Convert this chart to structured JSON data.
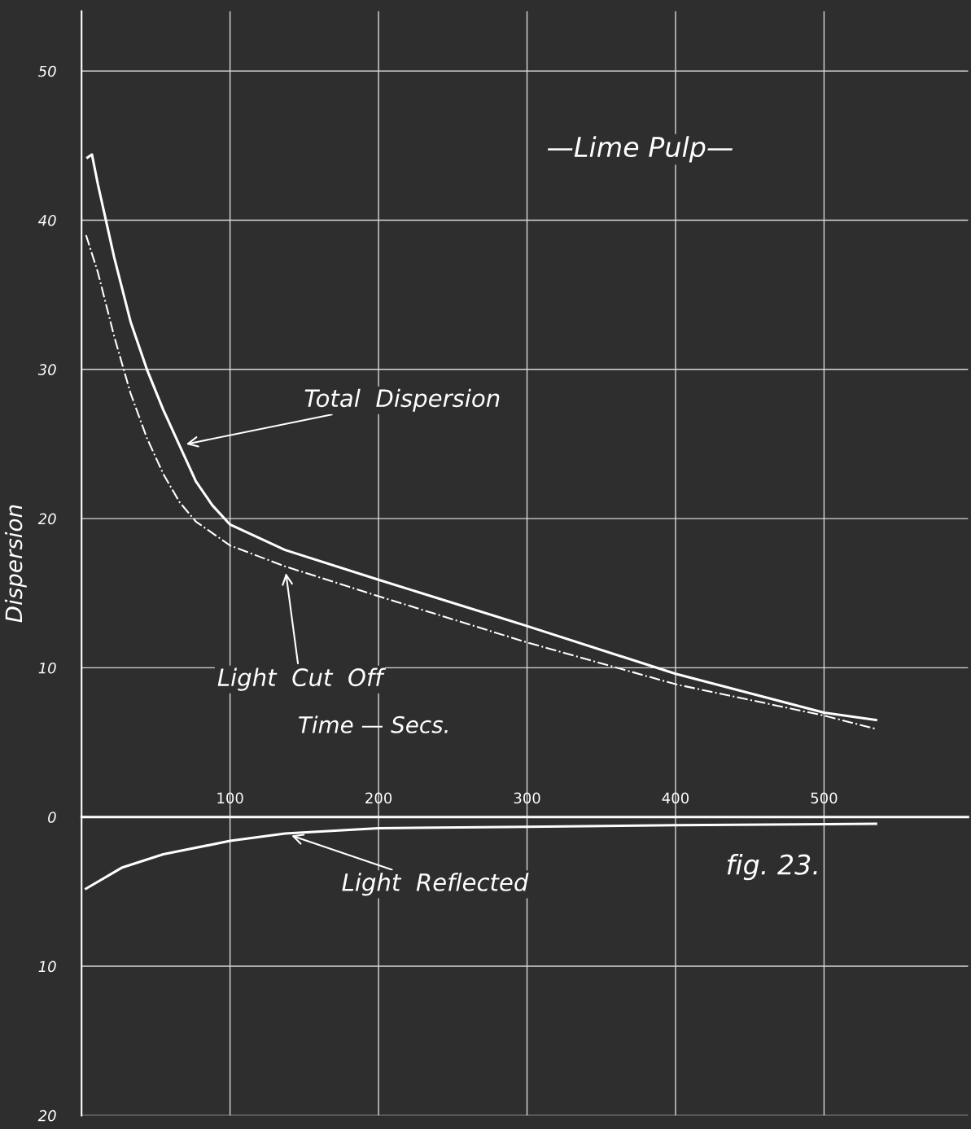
{
  "chart_data": {
    "type": "line",
    "title": "—Lime Pulp—",
    "xlabel": "Time — Secs.",
    "ylabel": "Dispersion",
    "xlim": [
      0,
      597
    ],
    "xticks": [
      100,
      200,
      300,
      400,
      500
    ],
    "ylim": [
      -20,
      54
    ],
    "yticks": [
      {
        "value": -20,
        "label": "20"
      },
      {
        "value": -10,
        "label": "10"
      },
      0,
      10,
      20,
      30,
      40,
      50
    ],
    "grid": true,
    "legend": false,
    "marker": "none",
    "series": [
      {
        "color": "#ffffff",
        "line_style": "solid",
        "x": [
          4,
          7,
          11,
          22,
          33,
          44,
          55,
          66,
          77,
          88,
          100,
          137,
          200,
          300,
          400,
          500,
          535
        ],
        "values": [
          44.2,
          44.4,
          42.4,
          37.5,
          33.2,
          30.0,
          27.3,
          24.9,
          22.5,
          20.9,
          19.6,
          17.9,
          15.9,
          12.8,
          9.6,
          7.0,
          6.5
        ]
      },
      {
        "color": "#ffffff",
        "line_style": "dashdot",
        "x": [
          3,
          11,
          22,
          33,
          44,
          55,
          66,
          77,
          100,
          137,
          200,
          300,
          400,
          500,
          535
        ],
        "values": [
          39.0,
          36.5,
          32.2,
          28.4,
          25.4,
          23.0,
          21.1,
          19.8,
          18.2,
          16.8,
          14.8,
          11.7,
          8.9,
          6.8,
          5.9
        ]
      },
      {
        "color": "#ffffff",
        "line_style": "solid",
        "x": [
          3,
          27,
          55,
          100,
          137,
          200,
          300,
          400,
          535
        ],
        "values": [
          -4.8,
          -3.4,
          -2.5,
          -1.6,
          -1.1,
          -0.75,
          -0.65,
          -0.55,
          -0.45
        ]
      }
    ],
    "annotations": [
      "Total  Dispersion",
      "Light  Cut  Off",
      {
        "text": "Light  Reflected",
        "x": 137,
        "y": -1.1
      },
      "fig. 23."
    ]
  }
}
